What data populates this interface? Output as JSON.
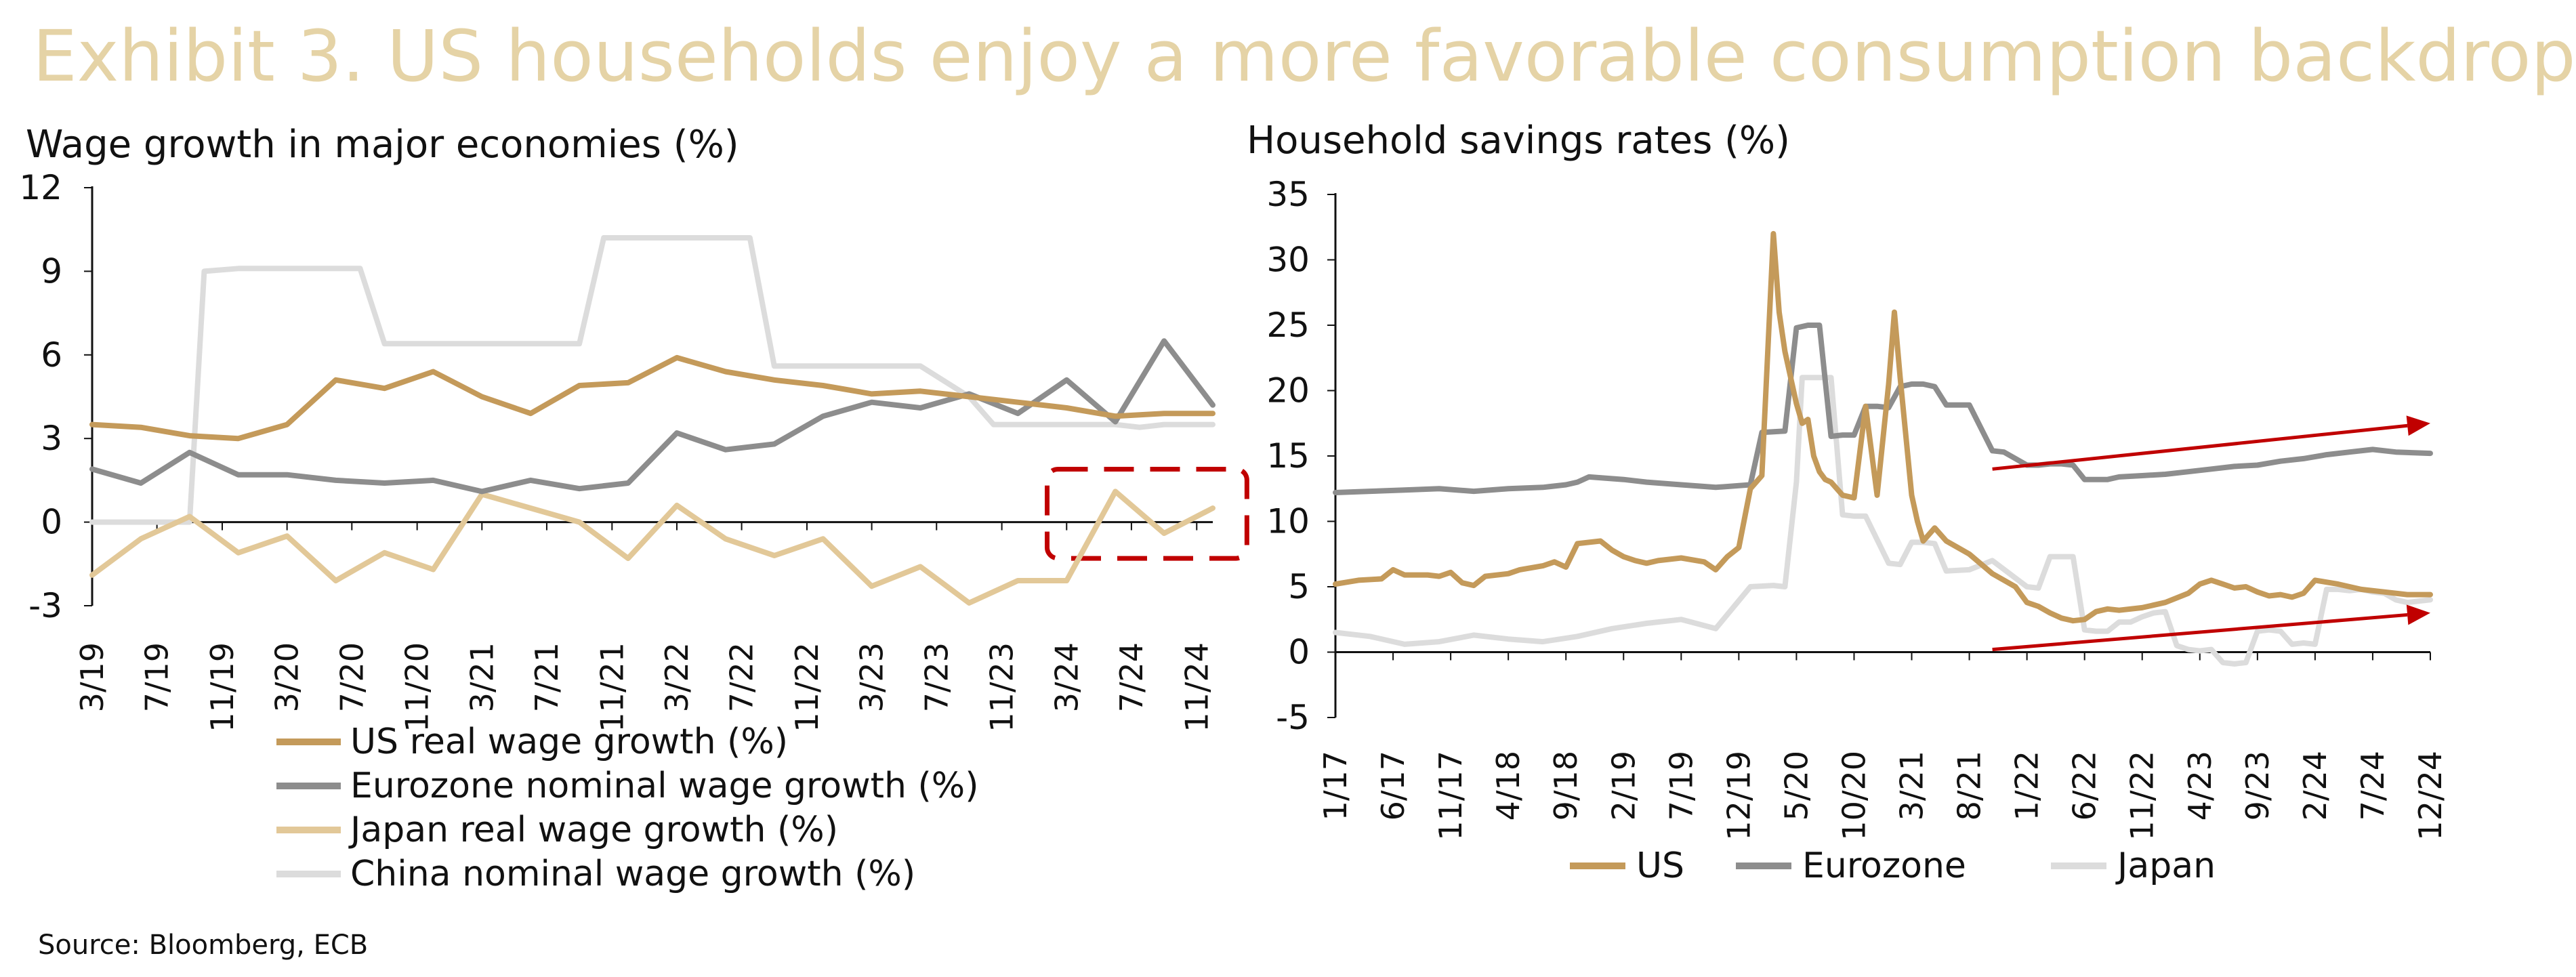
{
  "title": "Exhibit 3. US households enjoy a more favorable consumption backdrop",
  "source": "Source: Bloomberg, ECB",
  "colors": {
    "title": "#e5d3a6",
    "us": "#c49a5a",
    "eurozone": "#8d8d8d",
    "japan_wage": "#e2c898",
    "china": "#dcdcdc",
    "japan_savings": "#dcdcdc",
    "highlight": "#c00000",
    "arrow": "#c00000"
  },
  "chart_data": [
    {
      "type": "line",
      "title": "Wage growth in major economies (%)",
      "xlabel": "",
      "ylabel": "",
      "ylim": [
        -3,
        12
      ],
      "yticks": [
        -3,
        0,
        3,
        6,
        9,
        12
      ],
      "xlim": [
        0,
        23
      ],
      "tick_labels": [
        "3/19",
        "7/19",
        "11/19",
        "3/20",
        "7/20",
        "11/20",
        "3/21",
        "7/21",
        "11/21",
        "3/22",
        "7/22",
        "11/22",
        "3/23",
        "7/23",
        "11/23",
        "3/24",
        "7/24",
        "11/24"
      ],
      "tick_positions": [
        0,
        1.33,
        2.67,
        4,
        5.33,
        6.67,
        8,
        9.33,
        10.67,
        12,
        13.33,
        14.67,
        16,
        17.33,
        18.67,
        20,
        21.33,
        22.67
      ],
      "legend_position": "bottom",
      "series": [
        {
          "name": "US real wage growth (%)",
          "color_key": "us",
          "x": [
            0,
            1,
            2,
            3,
            4,
            5,
            6,
            7,
            8,
            9,
            10,
            11,
            12,
            13,
            14,
            15,
            16,
            17,
            18,
            19,
            20,
            21,
            22,
            23
          ],
          "y": [
            3.5,
            3.4,
            3.1,
            3.0,
            3.5,
            5.1,
            4.8,
            5.4,
            4.5,
            3.9,
            4.9,
            5.0,
            5.9,
            5.4,
            5.1,
            4.9,
            4.6,
            4.7,
            4.5,
            4.3,
            4.1,
            3.8,
            3.9,
            3.9
          ]
        },
        {
          "name": "Eurozone nominal wage growth (%)",
          "color_key": "eurozone",
          "x": [
            0,
            1,
            2,
            3,
            4,
            5,
            6,
            7,
            8,
            9,
            10,
            11,
            12,
            13,
            14,
            15,
            16,
            17,
            18,
            19,
            20,
            21,
            22,
            23
          ],
          "y": [
            1.9,
            1.4,
            2.5,
            1.7,
            1.7,
            1.5,
            1.4,
            1.5,
            1.1,
            1.5,
            1.2,
            1.4,
            3.2,
            2.6,
            2.8,
            3.8,
            4.3,
            4.1,
            4.6,
            3.9,
            5.1,
            3.6,
            6.5,
            4.2
          ]
        },
        {
          "name": "Japan real wage growth (%)",
          "color_key": "japan_wage",
          "x": [
            0,
            1,
            2,
            3,
            4,
            5,
            6,
            7,
            8,
            9,
            10,
            11,
            12,
            13,
            14,
            15,
            16,
            17,
            18,
            19,
            20,
            21,
            22,
            23
          ],
          "y": [
            -1.9,
            -0.6,
            0.2,
            -1.1,
            -0.5,
            -2.1,
            -1.1,
            -1.7,
            1.0,
            0.5,
            0.0,
            -1.3,
            0.6,
            -0.6,
            -1.2,
            -0.6,
            -2.3,
            -1.6,
            -2.9,
            -2.1,
            -2.1,
            1.1,
            -0.4,
            0.5
          ]
        },
        {
          "name": "China nominal wage growth (%)",
          "color_key": "china",
          "x": [
            0,
            1,
            1.5,
            2,
            2.3,
            3,
            4,
            5,
            5.5,
            6,
            6.5,
            7,
            8,
            9,
            10,
            10.5,
            11,
            12,
            13,
            13.5,
            14,
            14.5,
            15,
            16,
            17,
            18,
            18.5,
            19,
            20,
            21,
            21.5,
            22,
            23
          ],
          "y": [
            0,
            0,
            0,
            0,
            9.0,
            9.1,
            9.1,
            9.1,
            9.1,
            6.4,
            6.4,
            6.4,
            6.4,
            6.4,
            6.4,
            10.2,
            10.2,
            10.2,
            10.2,
            10.2,
            5.6,
            5.6,
            5.6,
            5.6,
            5.6,
            4.5,
            3.5,
            3.5,
            3.5,
            3.5,
            3.4,
            3.5,
            3.5
          ]
        }
      ],
      "highlight_box": {
        "x_range": [
          19.6,
          23.7
        ],
        "y_range": [
          -1.3,
          1.9
        ],
        "style": "dashed"
      }
    },
    {
      "type": "line",
      "title": "Household savings rates (%)",
      "xlabel": "",
      "ylabel": "",
      "ylim": [
        -5,
        35
      ],
      "yticks": [
        -5,
        0,
        5,
        10,
        15,
        20,
        25,
        30,
        35
      ],
      "xlim": [
        0,
        95
      ],
      "tick_labels": [
        "1/17",
        "6/17",
        "11/17",
        "4/18",
        "9/18",
        "2/19",
        "7/19",
        "12/19",
        "5/20",
        "10/20",
        "3/21",
        "8/21",
        "1/22",
        "6/22",
        "11/22",
        "4/23",
        "9/23",
        "2/24",
        "7/24",
        "12/24"
      ],
      "tick_positions": [
        0,
        5,
        10,
        15,
        20,
        25,
        30,
        35,
        40,
        45,
        50,
        55,
        60,
        65,
        70,
        75,
        80,
        85,
        90,
        95
      ],
      "legend_position": "bottom",
      "series": [
        {
          "name": "US",
          "color_key": "us",
          "x": [
            0,
            2,
            4,
            5,
            6,
            8,
            9,
            10,
            11,
            12,
            13,
            15,
            16,
            18,
            19,
            20,
            21,
            23,
            24,
            25,
            26,
            27,
            28,
            30,
            32,
            33,
            34,
            35,
            36,
            37,
            38,
            38.5,
            39,
            40,
            40.5,
            41,
            41.5,
            42,
            42.5,
            43,
            44,
            45,
            46,
            47,
            48,
            48.5,
            49,
            50,
            50.5,
            51,
            52,
            53,
            54,
            55,
            57,
            59,
            60,
            61,
            62,
            63,
            64,
            65,
            66,
            67,
            68,
            70,
            72,
            74,
            75,
            76,
            77,
            78,
            79,
            80,
            81,
            82,
            83,
            84,
            85,
            87,
            89,
            91,
            93,
            95
          ],
          "y": [
            5.2,
            5.5,
            5.6,
            6.3,
            5.9,
            5.9,
            5.8,
            6.1,
            5.3,
            5.1,
            5.8,
            6.0,
            6.3,
            6.6,
            6.9,
            6.5,
            8.3,
            8.5,
            7.8,
            7.3,
            7.0,
            6.8,
            7.0,
            7.2,
            6.9,
            6.3,
            7.3,
            8.0,
            12.5,
            13.5,
            32.0,
            26.0,
            23.0,
            19.0,
            17.5,
            17.8,
            15.0,
            13.8,
            13.2,
            13.0,
            12.0,
            11.8,
            18.8,
            12.0,
            20.5,
            26.0,
            21.0,
            12.0,
            10.0,
            8.5,
            9.5,
            8.5,
            8.0,
            7.5,
            6.0,
            5.0,
            3.8,
            3.5,
            3.0,
            2.6,
            2.4,
            2.5,
            3.1,
            3.3,
            3.2,
            3.4,
            3.8,
            4.5,
            5.2,
            5.5,
            5.2,
            4.9,
            5.0,
            4.6,
            4.3,
            4.4,
            4.2,
            4.5,
            5.5,
            5.2,
            4.8,
            4.6,
            4.4,
            4.4
          ]
        },
        {
          "name": "Eurozone",
          "color_key": "eurozone",
          "x": [
            0,
            3,
            6,
            9,
            12,
            15,
            18,
            20,
            21,
            22,
            25,
            27,
            30,
            33,
            36,
            37,
            39,
            40,
            41,
            42,
            43,
            44,
            45,
            46,
            47,
            48,
            49,
            50,
            51,
            52,
            53,
            54,
            55,
            57,
            58,
            60,
            61,
            62,
            63,
            64,
            65,
            66,
            67,
            68,
            70,
            72,
            74,
            76,
            78,
            80,
            82,
            84,
            86,
            88,
            90,
            92,
            95
          ],
          "y": [
            12.2,
            12.3,
            12.4,
            12.5,
            12.3,
            12.5,
            12.6,
            12.8,
            13.0,
            13.4,
            13.2,
            13.0,
            12.8,
            12.6,
            12.8,
            16.8,
            16.9,
            24.8,
            25.0,
            25.0,
            16.5,
            16.6,
            16.6,
            18.8,
            18.8,
            18.7,
            20.3,
            20.5,
            20.5,
            20.3,
            18.9,
            18.9,
            18.9,
            15.4,
            15.3,
            14.3,
            14.3,
            14.4,
            14.4,
            14.3,
            13.2,
            13.2,
            13.2,
            13.4,
            13.5,
            13.6,
            13.8,
            14.0,
            14.2,
            14.3,
            14.6,
            14.8,
            15.1,
            15.3,
            15.5,
            15.3,
            15.2
          ]
        },
        {
          "name": "Japan",
          "color_key": "japan_savings",
          "x": [
            0,
            3,
            6,
            9,
            12,
            15,
            18,
            21,
            24,
            27,
            30,
            33,
            36,
            38,
            39,
            40,
            40.5,
            41,
            42,
            43,
            44,
            45,
            46,
            48,
            49,
            50,
            51,
            52,
            53,
            55,
            57,
            60,
            61,
            62,
            63,
            64,
            65,
            66,
            67,
            68,
            69,
            70,
            71,
            72,
            73,
            74,
            75,
            76,
            77,
            78,
            79,
            80,
            81,
            82,
            83,
            84,
            85,
            86,
            87,
            88,
            89,
            90,
            91,
            92,
            93,
            94,
            95
          ],
          "y": [
            1.5,
            1.2,
            0.6,
            0.8,
            1.3,
            1.0,
            0.8,
            1.2,
            1.8,
            2.2,
            2.5,
            1.8,
            5.0,
            5.1,
            5.0,
            13.0,
            21.0,
            21.0,
            21.0,
            21.0,
            10.5,
            10.4,
            10.4,
            6.8,
            6.7,
            8.4,
            8.4,
            8.3,
            6.2,
            6.3,
            7.0,
            5.0,
            4.9,
            7.3,
            7.3,
            7.3,
            1.7,
            1.6,
            1.6,
            2.3,
            2.3,
            2.7,
            3.0,
            3.1,
            0.5,
            0.2,
            0.1,
            0.2,
            -0.8,
            -0.9,
            -0.8,
            1.6,
            1.7,
            1.6,
            0.6,
            0.7,
            0.6,
            4.8,
            4.8,
            4.7,
            4.8,
            4.6,
            4.5,
            4.0,
            3.8,
            3.9,
            4.0
          ]
        }
      ],
      "arrows": [
        {
          "from": [
            57,
            14.0
          ],
          "to": [
            95,
            17.5
          ]
        },
        {
          "from": [
            57,
            0.2
          ],
          "to": [
            95,
            3.0
          ]
        }
      ]
    }
  ]
}
